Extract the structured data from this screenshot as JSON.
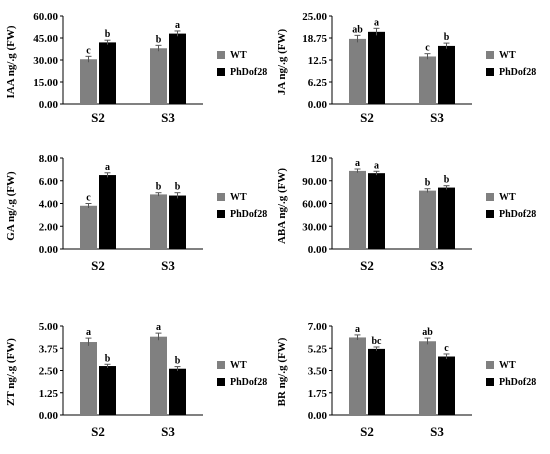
{
  "chart_data": [
    {
      "type": "bar",
      "ylabel": "IAA ng/.g  (FW)",
      "categories": [
        "S2",
        "S3"
      ],
      "yticks": [
        "0.00",
        "15.00",
        "30.00",
        "45.00",
        "60.00"
      ],
      "ylim": [
        0,
        60
      ],
      "series": [
        {
          "name": "WT",
          "color": "#808080",
          "values": [
            30.5,
            38
          ],
          "errors": [
            2,
            2
          ],
          "letters": [
            "c",
            "b"
          ]
        },
        {
          "name": "PhDof28",
          "color": "#000000",
          "values": [
            42,
            48
          ],
          "errors": [
            1.5,
            1.8
          ],
          "letters": [
            "b",
            "a"
          ]
        }
      ],
      "legend": "right"
    },
    {
      "type": "bar",
      "ylabel": "JA ng/.g  (FW)",
      "categories": [
        "S2",
        "S3"
      ],
      "yticks": [
        "0.00",
        "6.25",
        "12.5",
        "18.75",
        "25.00"
      ],
      "ylim": [
        0,
        25
      ],
      "series": [
        {
          "name": "WT",
          "color": "#808080",
          "values": [
            18.5,
            13.5
          ],
          "errors": [
            1,
            0.8
          ],
          "letters": [
            "ab",
            "c"
          ]
        },
        {
          "name": "PhDof28",
          "color": "#000000",
          "values": [
            20.5,
            16.5
          ],
          "errors": [
            1,
            0.8
          ],
          "letters": [
            "a",
            "b"
          ]
        }
      ],
      "legend": "right"
    },
    {
      "type": "bar",
      "ylabel": "GA ng/.g  (FW)",
      "categories": [
        "S2",
        "S3"
      ],
      "yticks": [
        "0.00",
        "2.00",
        "4.00",
        "6.00",
        "8.00"
      ],
      "ylim": [
        0,
        8
      ],
      "series": [
        {
          "name": "WT",
          "color": "#808080",
          "values": [
            3.8,
            4.8
          ],
          "errors": [
            0.2,
            0.15
          ],
          "letters": [
            "c",
            "b"
          ]
        },
        {
          "name": "PhDof28",
          "color": "#000000",
          "values": [
            6.5,
            4.7
          ],
          "errors": [
            0.2,
            0.25
          ],
          "letters": [
            "a",
            "b"
          ]
        }
      ],
      "legend": "right"
    },
    {
      "type": "bar",
      "ylabel": "ABA ng/.g  (FW)",
      "categories": [
        "S2",
        "S3"
      ],
      "yticks": [
        "0.00",
        "30.00",
        "60.00",
        "90.00",
        "120"
      ],
      "ylim": [
        0,
        120
      ],
      "series": [
        {
          "name": "WT",
          "color": "#808080",
          "values": [
            103,
            77
          ],
          "errors": [
            2.5,
            2.5
          ],
          "letters": [
            "a",
            "b"
          ]
        },
        {
          "name": "PhDof28",
          "color": "#000000",
          "values": [
            100,
            81
          ],
          "errors": [
            2.5,
            2.5
          ],
          "letters": [
            "a",
            "b"
          ]
        }
      ],
      "legend": "right"
    },
    {
      "type": "bar",
      "ylabel": "ZT ng/.g  (FW)",
      "categories": [
        "S2",
        "S3"
      ],
      "yticks": [
        "0.00",
        "1.25",
        "2.50",
        "3.75",
        "5.00"
      ],
      "ylim": [
        0,
        5
      ],
      "series": [
        {
          "name": "WT",
          "color": "#808080",
          "values": [
            4.1,
            4.4
          ],
          "errors": [
            0.22,
            0.2
          ],
          "letters": [
            "a",
            "a"
          ]
        },
        {
          "name": "PhDof28",
          "color": "#000000",
          "values": [
            2.75,
            2.6
          ],
          "errors": [
            0.1,
            0.12
          ],
          "letters": [
            "b",
            "b"
          ]
        }
      ],
      "legend": "right"
    },
    {
      "type": "bar",
      "ylabel": "BR ng/.g  (FW)",
      "categories": [
        "S2",
        "S3"
      ],
      "yticks": [
        "0.00",
        "1.75",
        "3.50",
        "5.25",
        "7.00"
      ],
      "ylim": [
        0,
        7
      ],
      "series": [
        {
          "name": "WT",
          "color": "#808080",
          "values": [
            6.1,
            5.8
          ],
          "errors": [
            0.2,
            0.25
          ],
          "letters": [
            "a",
            "ab"
          ]
        },
        {
          "name": "PhDof28",
          "color": "#000000",
          "values": [
            5.2,
            4.6
          ],
          "errors": [
            0.15,
            0.2
          ],
          "letters": [
            "bc",
            "c"
          ]
        }
      ],
      "legend": "right"
    }
  ]
}
